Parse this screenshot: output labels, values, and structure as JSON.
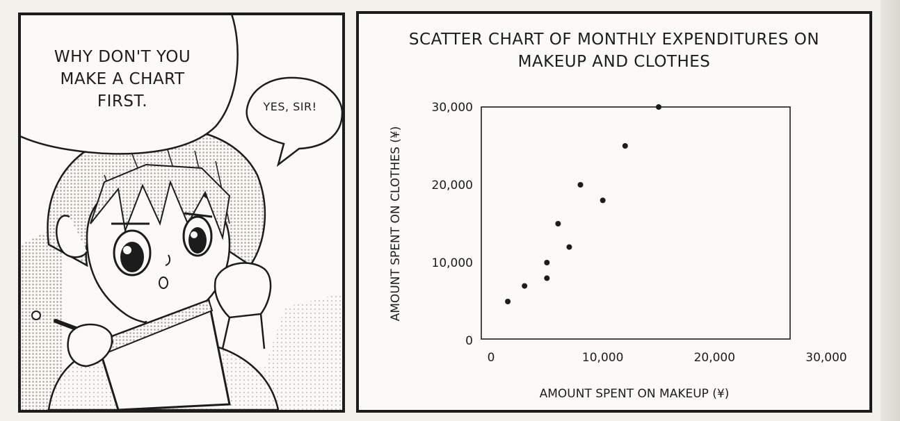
{
  "speech_bubbles": {
    "teacher": [
      "WHY DON'T YOU",
      "MAKE A CHART",
      "FIRST."
    ],
    "student": "YES, SIR!"
  },
  "chart_data": {
    "type": "scatter",
    "title": [
      "SCATTER CHART OF MONTHLY EXPENDITURES ON",
      "MAKEUP AND CLOTHES"
    ],
    "xlabel": "AMOUNT SPENT ON MAKEUP (¥)",
    "ylabel": "AMOUNT SPENT ON CLOTHES (¥)",
    "xlim": [
      0,
      30000
    ],
    "ylim": [
      0,
      30000
    ],
    "x_ticks": [
      0,
      10000,
      20000,
      30000
    ],
    "y_ticks": [
      0,
      10000,
      20000,
      30000
    ],
    "x_tick_labels": [
      "0",
      "10,000",
      "20,000",
      "30,000"
    ],
    "y_tick_labels": [
      "0",
      "10,000",
      "20,000",
      "30,000"
    ],
    "grid": false,
    "points": [
      {
        "x": 1500,
        "y": 5000
      },
      {
        "x": 3000,
        "y": 7000
      },
      {
        "x": 5000,
        "y": 8000
      },
      {
        "x": 5000,
        "y": 10000
      },
      {
        "x": 6000,
        "y": 15000
      },
      {
        "x": 7000,
        "y": 12000
      },
      {
        "x": 8000,
        "y": 20000
      },
      {
        "x": 10000,
        "y": 18000
      },
      {
        "x": 12000,
        "y": 25000
      },
      {
        "x": 15000,
        "y": 30000
      }
    ]
  },
  "colors": {
    "ink": "#1c1c1c",
    "paper": "#fbfaf6",
    "screentone": "#c9c7c1"
  }
}
